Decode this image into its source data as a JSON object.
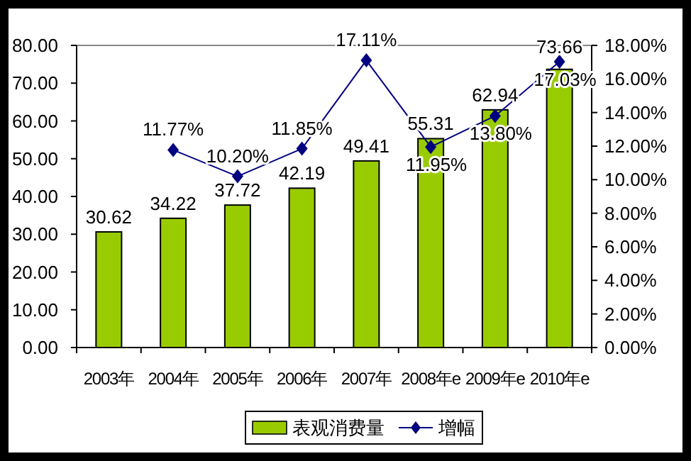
{
  "chart_data": {
    "type": "bar",
    "categories": [
      "2003年",
      "2004年",
      "2005年",
      "2006年",
      "2007年",
      "2008年e",
      "2009年e",
      "2010年e"
    ],
    "series": [
      {
        "name": "表观消费量",
        "color": "#99cc00",
        "values": [
          30.62,
          34.22,
          37.72,
          42.19,
          49.41,
          55.31,
          62.94,
          73.66
        ],
        "value_labels": [
          "30.62",
          "34.22",
          "37.72",
          "42.19",
          "49.41",
          "55.31",
          "62.94",
          "73.66"
        ]
      },
      {
        "name": "增幅",
        "type": "line",
        "axis": "y2",
        "color": "#000080",
        "marker": "diamond",
        "values": [
          null,
          11.77,
          10.2,
          11.85,
          17.11,
          11.95,
          13.8,
          17.03
        ],
        "value_labels": [
          null,
          "11.77%",
          "10.20%",
          "11.85%",
          "17.11%",
          "11.95%",
          "13.80%",
          "17.03%"
        ]
      }
    ],
    "ylim": [
      0,
      80
    ],
    "yticks": [
      {
        "value": 0,
        "label": "0.00"
      },
      {
        "value": 10,
        "label": "10.00"
      },
      {
        "value": 20,
        "label": "20.00"
      },
      {
        "value": 30,
        "label": "30.00"
      },
      {
        "value": 40,
        "label": "40.00"
      },
      {
        "value": 50,
        "label": "50.00"
      },
      {
        "value": 60,
        "label": "60.00"
      },
      {
        "value": 70,
        "label": "70.00"
      },
      {
        "value": 80,
        "label": "80.00"
      }
    ],
    "y2lim": [
      0,
      18
    ],
    "y2ticks": [
      {
        "value": 0,
        "label": "0.00%"
      },
      {
        "value": 2,
        "label": "2.00%"
      },
      {
        "value": 4,
        "label": "4.00%"
      },
      {
        "value": 6,
        "label": "6.00%"
      },
      {
        "value": 8,
        "label": "8.00%"
      },
      {
        "value": 10,
        "label": "10.00%"
      },
      {
        "value": 12,
        "label": "12.00%"
      },
      {
        "value": 14,
        "label": "14.00%"
      },
      {
        "value": 16,
        "label": "16.00%"
      },
      {
        "value": 18,
        "label": "18.00%"
      }
    ],
    "grid": false,
    "legend": "bottom"
  }
}
